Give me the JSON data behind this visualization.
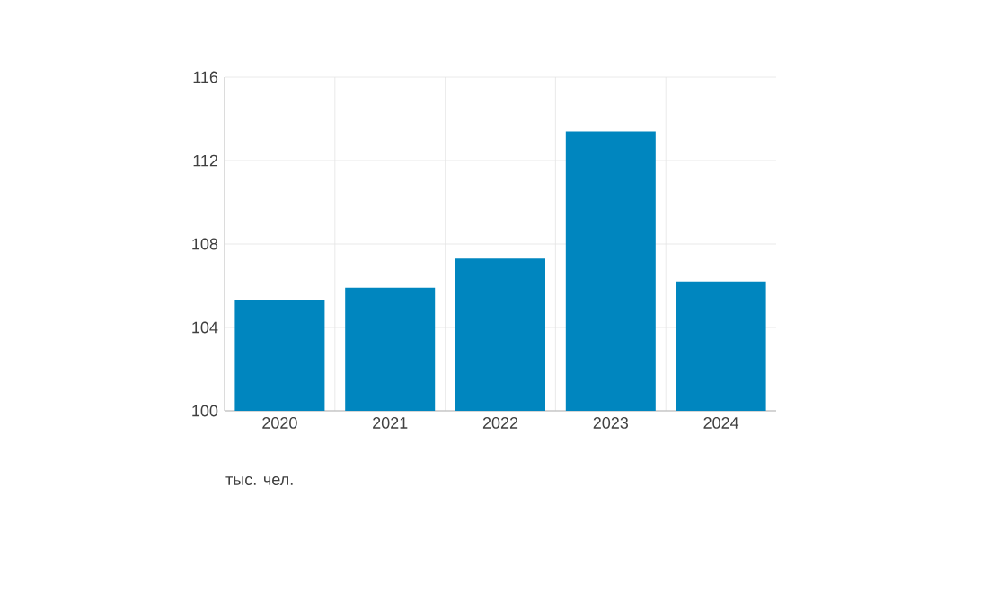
{
  "chart_data": {
    "type": "bar",
    "categories": [
      "2020",
      "2021",
      "2022",
      "2023",
      "2024"
    ],
    "values": [
      105.3,
      105.9,
      107.3,
      113.4,
      106.2
    ],
    "color": "#0086bf",
    "ylim": [
      100,
      116
    ],
    "yticks": [
      100,
      104,
      108,
      112,
      116
    ],
    "grid": true,
    "annotations": [
      "тыс. чел."
    ]
  }
}
